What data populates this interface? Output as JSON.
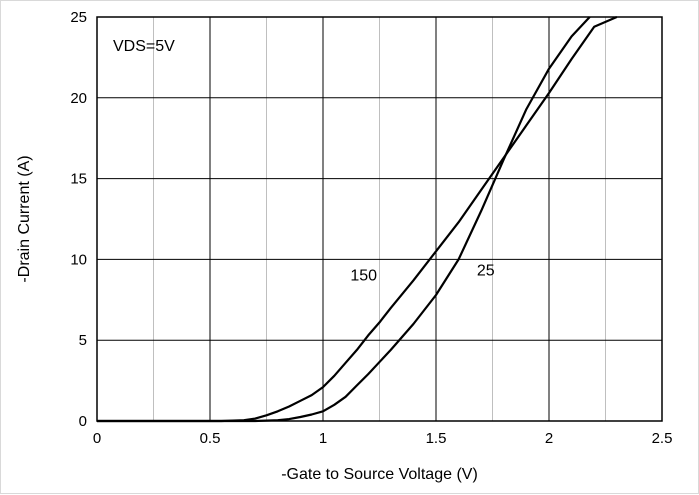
{
  "chart_data": {
    "type": "line",
    "xlabel": "-Gate to Source Voltage (V)",
    "ylabel": "-Drain Current (A)",
    "xlim": [
      0,
      2.5
    ],
    "ylim": [
      0,
      25
    ],
    "x_ticks": [
      "0",
      "0.5",
      "1",
      "1.5",
      "2",
      "2.5"
    ],
    "y_ticks": [
      "0",
      "5",
      "10",
      "15",
      "20",
      "25"
    ],
    "x_minor_step": 0.25,
    "y_major_step": 5,
    "grid": true,
    "condition_label": "VDS=5V",
    "series": [
      {
        "name": "150",
        "color": "#000000",
        "points": [
          [
            0,
            0
          ],
          [
            0.55,
            0
          ],
          [
            0.65,
            0.05
          ],
          [
            0.7,
            0.15
          ],
          [
            0.75,
            0.35
          ],
          [
            0.8,
            0.6
          ],
          [
            0.85,
            0.9
          ],
          [
            0.9,
            1.25
          ],
          [
            0.95,
            1.6
          ],
          [
            1.0,
            2.1
          ],
          [
            1.05,
            2.8
          ],
          [
            1.1,
            3.6
          ],
          [
            1.15,
            4.4
          ],
          [
            1.2,
            5.3
          ],
          [
            1.25,
            6.1
          ],
          [
            1.3,
            7.0
          ],
          [
            1.4,
            8.7
          ],
          [
            1.5,
            10.5
          ],
          [
            1.6,
            12.3
          ],
          [
            1.7,
            14.3
          ],
          [
            1.8,
            16.3
          ],
          [
            1.9,
            18.3
          ],
          [
            2.0,
            20.3
          ],
          [
            2.1,
            22.4
          ],
          [
            2.2,
            24.4
          ],
          [
            2.3,
            25.0
          ]
        ]
      },
      {
        "name": "25",
        "color": "#000000",
        "points": [
          [
            0,
            0
          ],
          [
            0.7,
            0
          ],
          [
            0.8,
            0.05
          ],
          [
            0.85,
            0.12
          ],
          [
            0.9,
            0.25
          ],
          [
            0.95,
            0.4
          ],
          [
            1.0,
            0.6
          ],
          [
            1.05,
            1.0
          ],
          [
            1.1,
            1.5
          ],
          [
            1.15,
            2.2
          ],
          [
            1.2,
            2.9
          ],
          [
            1.3,
            4.4
          ],
          [
            1.4,
            6.0
          ],
          [
            1.5,
            7.8
          ],
          [
            1.6,
            10.0
          ],
          [
            1.7,
            13.0
          ],
          [
            1.8,
            16.2
          ],
          [
            1.9,
            19.3
          ],
          [
            2.0,
            21.8
          ],
          [
            2.1,
            23.8
          ],
          [
            2.18,
            25.0
          ]
        ]
      }
    ],
    "annotations": [
      {
        "text": "150",
        "x": 1.18,
        "y": 8.7
      },
      {
        "text": "25",
        "x": 1.72,
        "y": 9.0
      }
    ]
  }
}
